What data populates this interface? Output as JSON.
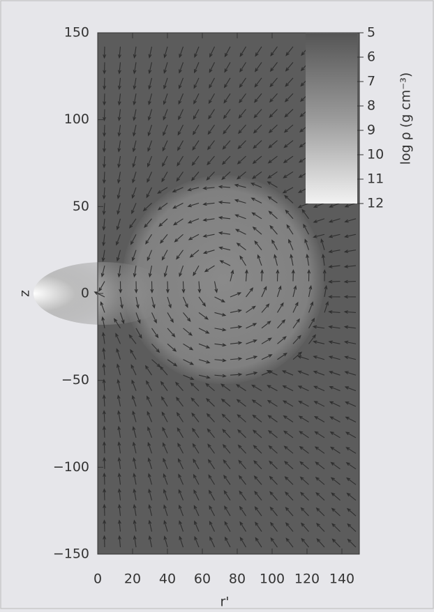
{
  "chart_data": {
    "type": "heatmap",
    "xlabel": "r'",
    "ylabel": "z",
    "xlim": [
      0,
      150
    ],
    "ylim": [
      -150,
      150
    ],
    "xticks": [
      0,
      20,
      40,
      60,
      80,
      100,
      120,
      140
    ],
    "yticks": [
      {
        "value": -150,
        "label": "−150"
      },
      {
        "value": -100,
        "label": "−100"
      },
      {
        "value": -50,
        "label": "−50"
      },
      0,
      50,
      100,
      150
    ],
    "colorbar": {
      "label": "log ρ (g cm⁻³)",
      "lim": [
        5,
        12
      ],
      "ticks": [
        5,
        6,
        7,
        8,
        9,
        10,
        11,
        12
      ]
    }
  }
}
